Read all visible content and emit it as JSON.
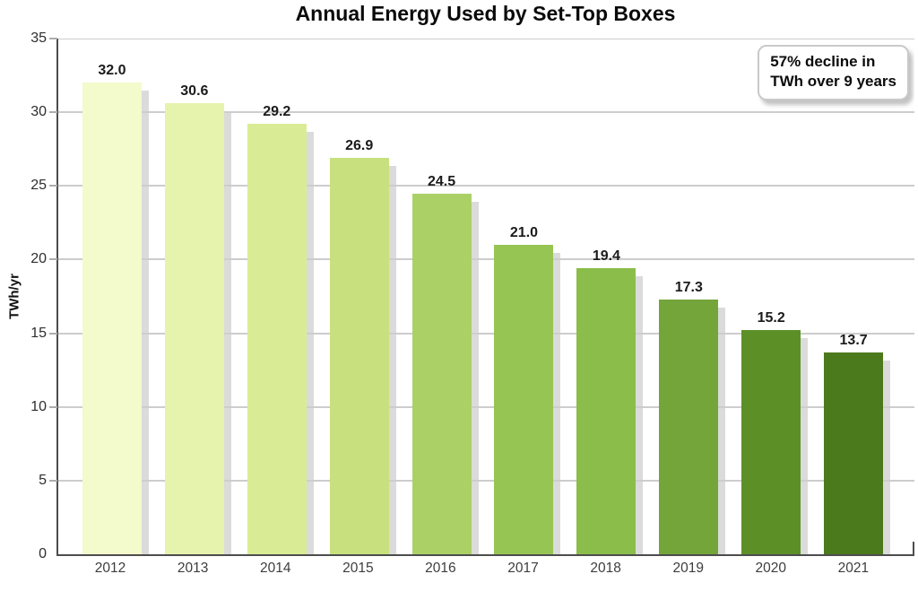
{
  "title": "Annual Energy Used by Set-Top Boxes",
  "annotation": {
    "line1": "57% decline in",
    "line2": "TWh over 9 years"
  },
  "chart_data": {
    "type": "bar",
    "title": "Annual Energy Used by Set-Top Boxes",
    "categories": [
      "2012",
      "2013",
      "2014",
      "2015",
      "2016",
      "2017",
      "2018",
      "2019",
      "2020",
      "2021"
    ],
    "values": [
      32.0,
      30.6,
      29.2,
      26.9,
      24.5,
      21.0,
      19.4,
      17.3,
      15.2,
      13.7
    ],
    "bar_labels": [
      "32.0",
      "30.6",
      "29.2",
      "26.9",
      "24.5",
      "21.0",
      "19.4",
      "17.3",
      "15.2",
      "13.7"
    ],
    "xlabel": "",
    "ylabel": "TWh/yr",
    "ylim": [
      0,
      35
    ],
    "yticks": [
      0,
      5,
      10,
      15,
      20,
      25,
      30,
      35
    ],
    "grid": true,
    "legend": "none",
    "annotation": "57% decline in TWh over 9 years",
    "bar_colors": [
      "#f3facb",
      "#e6f3ad",
      "#d9ec95",
      "#c8e17e",
      "#abd166",
      "#97c553",
      "#8bbd4a",
      "#73a53a",
      "#5c9027",
      "#4b7a1d"
    ],
    "colors": {
      "axis": "#4d4d4d",
      "gridline": "#cdcdcd",
      "bar_shadow": "#dbdbdb",
      "title_text": "#0a0a0a",
      "tick_text": "#2e2e2e",
      "category_text": "#3d3d3d",
      "value_label_text": "#1b1b1b",
      "annotation_border": "#c9c9c9",
      "background": "#ffffff"
    }
  }
}
